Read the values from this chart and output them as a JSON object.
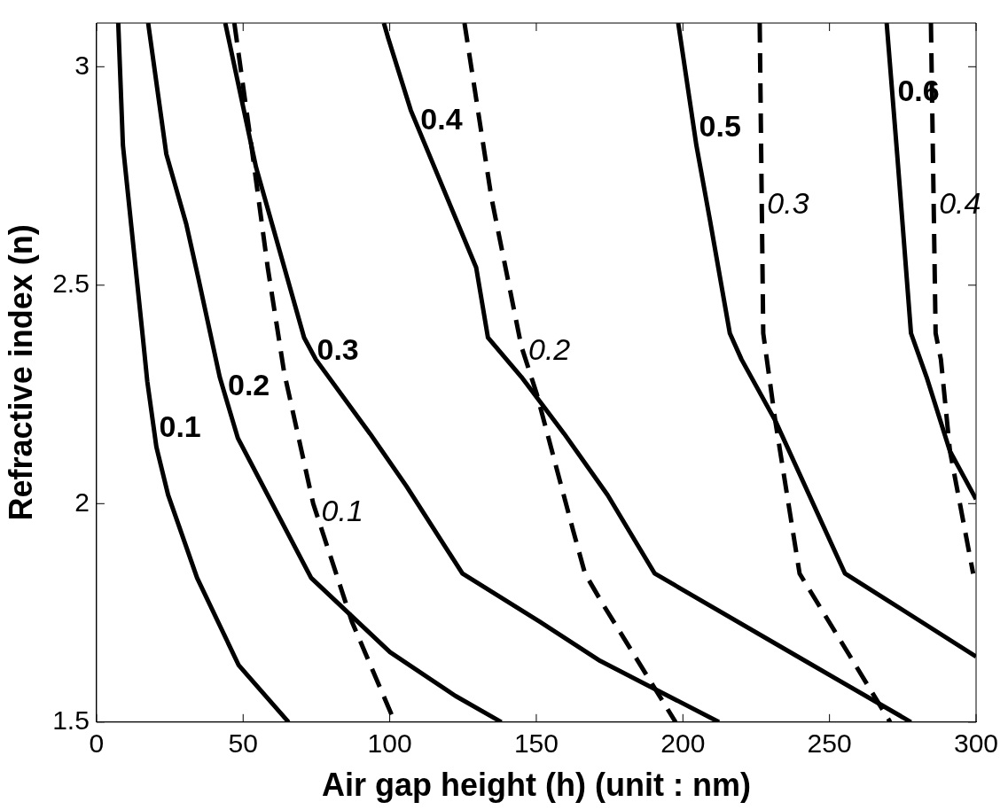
{
  "chart_data": {
    "type": "line",
    "xlabel": "Air gap height (h) (unit : nm)",
    "ylabel": "Refractive index (n)",
    "xlim": [
      0,
      300
    ],
    "ylim": [
      1.5,
      3.1
    ],
    "xticks": [
      0,
      50,
      100,
      150,
      200,
      250,
      300
    ],
    "yticks": [
      1.5,
      2,
      2.5,
      3
    ],
    "marker": "none",
    "legend": false,
    "series": [
      {
        "name": "0.1",
        "color": "#000000",
        "line_style": "solid",
        "x": [
          7.4,
          9.0,
          15.8,
          17.3,
          20.4,
          24.4,
          34.3,
          48.5,
          65.5
        ],
        "values": [
          3.1,
          2.82,
          2.38,
          2.28,
          2.13,
          2.02,
          1.83,
          1.63,
          1.5
        ]
      },
      {
        "name": "0.2",
        "color": "#000000",
        "line_style": "solid",
        "x": [
          17.6,
          23.8,
          30.6,
          34.6,
          42.0,
          48.2,
          73.2,
          100.1,
          122.4,
          138.1
        ],
        "values": [
          3.1,
          2.8,
          2.64,
          2.52,
          2.29,
          2.15,
          1.83,
          1.66,
          1.56,
          1.5
        ]
      },
      {
        "name": "0.3",
        "color": "#000000",
        "line_style": "solid",
        "x": [
          43.9,
          54.4,
          70.8,
          74.8,
          93.3,
          105.7,
          124.8,
          151.1,
          171.8,
          212.3
        ],
        "values": [
          3.1,
          2.77,
          2.38,
          2.33,
          2.16,
          2.04,
          1.84,
          1.73,
          1.64,
          1.5
        ]
      },
      {
        "name": "0.4",
        "color": "#000000",
        "line_style": "solid",
        "x": [
          98.0,
          99.5,
          107.2,
          129.5,
          133.5,
          144.9,
          159.5,
          174.3,
          190.4,
          241.7,
          277.8
        ],
        "values": [
          3.1,
          3.065,
          2.9,
          2.54,
          2.38,
          2.29,
          2.16,
          2.02,
          1.84,
          1.64,
          1.5
        ]
      },
      {
        "name": "0.5",
        "color": "#000000",
        "line_style": "solid",
        "x": [
          198.4,
          204.6,
          209.2,
          216.0,
          220.0,
          231.5,
          255.3,
          269.5,
          300
        ],
        "values": [
          3.1,
          2.82,
          2.65,
          2.39,
          2.33,
          2.19,
          1.84,
          1.78,
          1.65
        ]
      },
      {
        "name": "0.6",
        "color": "#000000",
        "line_style": "solid",
        "x": [
          269.5,
          273.2,
          277.8,
          283.1,
          291.1,
          300
        ],
        "values": [
          3.1,
          2.79,
          2.39,
          2.29,
          2.12,
          2.01
        ]
      },
      {
        "name": "0.1",
        "color": "#000000",
        "line_style": "dashed",
        "x": [
          47.0,
          52.8,
          58.4,
          64.0,
          73.9,
          87.1,
          101.7
        ],
        "values": [
          3.1,
          2.82,
          2.54,
          2.3,
          2.0,
          1.73,
          1.5
        ]
      },
      {
        "name": "0.2",
        "color": "#000000",
        "line_style": "dashed",
        "x": [
          125.5,
          134.7,
          144.9,
          150.2,
          162.5,
          166.6,
          172.7,
          197.5
        ],
        "values": [
          3.1,
          2.7,
          2.36,
          2.25,
          1.94,
          1.84,
          1.77,
          1.5
        ]
      },
      {
        "name": "0.3",
        "color": "#000000",
        "line_style": "dashed",
        "x": [
          226.2,
          227.4,
          231.5,
          239.8,
          270.7
        ],
        "values": [
          3.1,
          2.39,
          2.19,
          1.84,
          1.5
        ]
      },
      {
        "name": "0.4",
        "color": "#000000",
        "line_style": "dashed",
        "x": [
          284.6,
          286.2,
          288.0,
          291.1,
          299.0
        ],
        "values": [
          3.1,
          2.39,
          2.33,
          2.12,
          1.84
        ]
      }
    ]
  }
}
